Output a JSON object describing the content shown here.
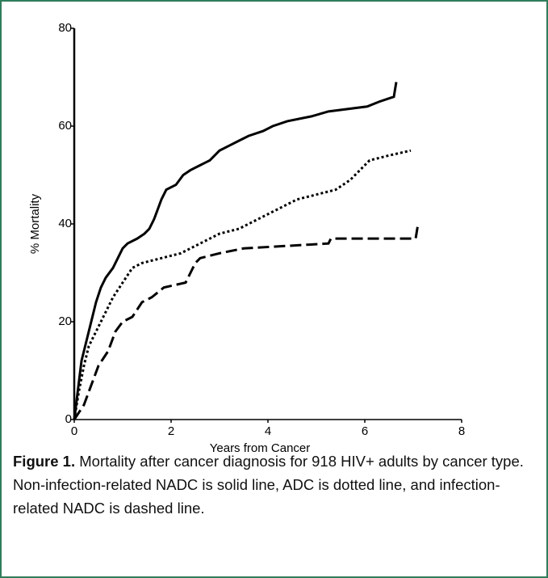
{
  "chart_data": {
    "type": "line",
    "xlabel": "Years from Cancer",
    "ylabel": "% Mortality",
    "xlim": [
      0,
      8
    ],
    "xticks": [
      0,
      2,
      4,
      6,
      8
    ],
    "ylim": [
      0,
      80
    ],
    "yticks": [
      0,
      20,
      40,
      60,
      80
    ],
    "series": [
      {
        "color": "#000000",
        "style": "solid",
        "x": [
          0,
          0.05,
          0.1,
          0.15,
          0.25,
          0.35,
          0.45,
          0.55,
          0.65,
          0.8,
          0.9,
          1.0,
          1.1,
          1.3,
          1.45,
          1.55,
          1.65,
          1.8,
          1.9,
          2.1,
          2.25,
          2.4,
          2.6,
          2.8,
          3.0,
          3.2,
          3.4,
          3.6,
          3.9,
          4.1,
          4.4,
          4.9,
          5.25,
          6.05,
          6.3,
          6.6,
          6.65
        ],
        "values": [
          0,
          4,
          8,
          12,
          16,
          20,
          24,
          27,
          29,
          31,
          33,
          35,
          36,
          37,
          38,
          39,
          41,
          45,
          47,
          48,
          50,
          51,
          52,
          53,
          55,
          56,
          57,
          58,
          59,
          60,
          61,
          62,
          63,
          64,
          65,
          66,
          69
        ]
      },
      {
        "color": "#000000",
        "style": "dotted",
        "x": [
          0,
          0.1,
          0.2,
          0.3,
          0.45,
          0.6,
          0.8,
          1.0,
          1.2,
          1.4,
          1.8,
          2.2,
          2.6,
          3.0,
          3.4,
          3.8,
          4.2,
          4.6,
          5.0,
          5.4,
          5.7,
          5.9,
          6.1,
          6.5,
          6.95
        ],
        "values": [
          0,
          6,
          11,
          15,
          18,
          21,
          25,
          28,
          31,
          32,
          33,
          34,
          36,
          38,
          39,
          41,
          43,
          45,
          46,
          47,
          49,
          51,
          53,
          54,
          55
        ]
      },
      {
        "color": "#000000",
        "style": "dashed",
        "x": [
          0,
          0.2,
          0.35,
          0.5,
          0.7,
          0.85,
          1.0,
          1.2,
          1.4,
          1.6,
          1.85,
          2.3,
          2.4,
          2.5,
          2.6,
          3.0,
          3.5,
          5.25,
          5.3,
          7.05,
          7.1
        ],
        "values": [
          0,
          3,
          7,
          11,
          14,
          18,
          20,
          21,
          24,
          25,
          27,
          28,
          30,
          32,
          33,
          34,
          35,
          36,
          37,
          37,
          40
        ]
      }
    ]
  },
  "caption": {
    "label": "Figure 1.",
    "text": "Mortality after cancer diagnosis for 918 HIV+ adults by cancer type. Non-infection-related NADC is solid line, ADC is dotted line, and infection-related NADC is dashed line."
  }
}
